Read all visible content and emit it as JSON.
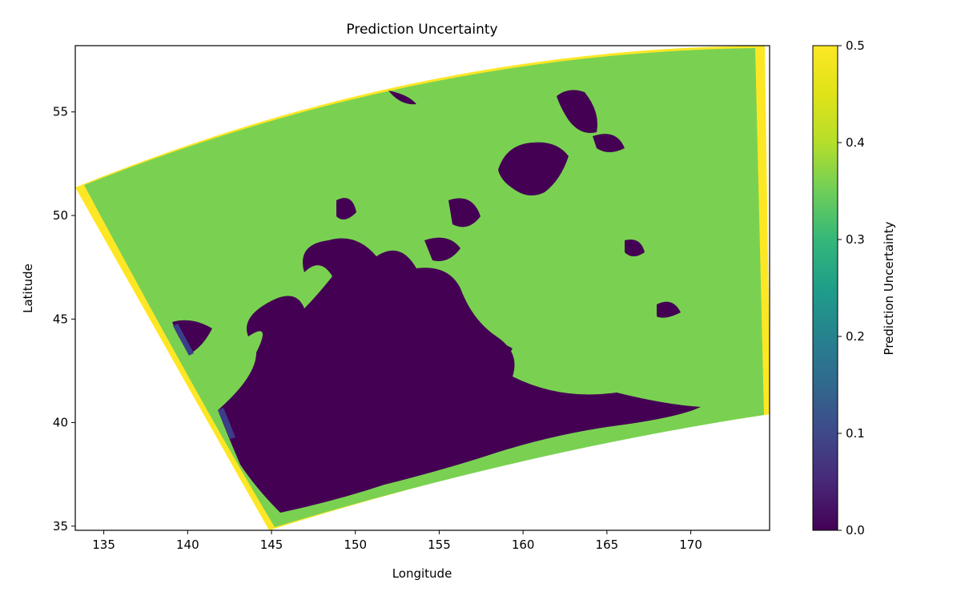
{
  "chart_data": {
    "type": "heatmap",
    "title": "Prediction Uncertainty",
    "xlabel": "Longitude",
    "ylabel": "Latitude",
    "xlim": [
      133.3,
      174.7
    ],
    "ylim": [
      34.8,
      58.2
    ],
    "xticks": [
      135,
      140,
      145,
      150,
      155,
      160,
      165,
      170
    ],
    "yticks": [
      35,
      40,
      45,
      50,
      55
    ],
    "grid": false,
    "colorbar": {
      "label": "Prediction Uncertainty",
      "min": 0.0,
      "max": 0.5,
      "ticks": [
        0.0,
        0.1,
        0.2,
        0.3,
        0.4,
        0.5
      ],
      "tick_labels": [
        "0.0",
        "0.1",
        "0.2",
        "0.3",
        "0.4",
        "0.5"
      ],
      "colormap": "viridis"
    },
    "swath_corners": {
      "northwest": [
        133.3,
        51.3
      ],
      "northeast": [
        174.5,
        58.1
      ],
      "southeast": [
        174.7,
        40.4
      ],
      "southwest": [
        144.9,
        34.8
      ]
    },
    "regions": [
      {
        "label": "background",
        "value": 0.4,
        "color": "#7ad151"
      },
      {
        "label": "swath edge",
        "value": 0.5,
        "color": "#fde725"
      },
      {
        "label": "low uncertainty",
        "value": 0.0,
        "color": "#440154"
      },
      {
        "label": "edge strip segments",
        "value": 0.07,
        "color": "#3b3f8a"
      }
    ]
  }
}
